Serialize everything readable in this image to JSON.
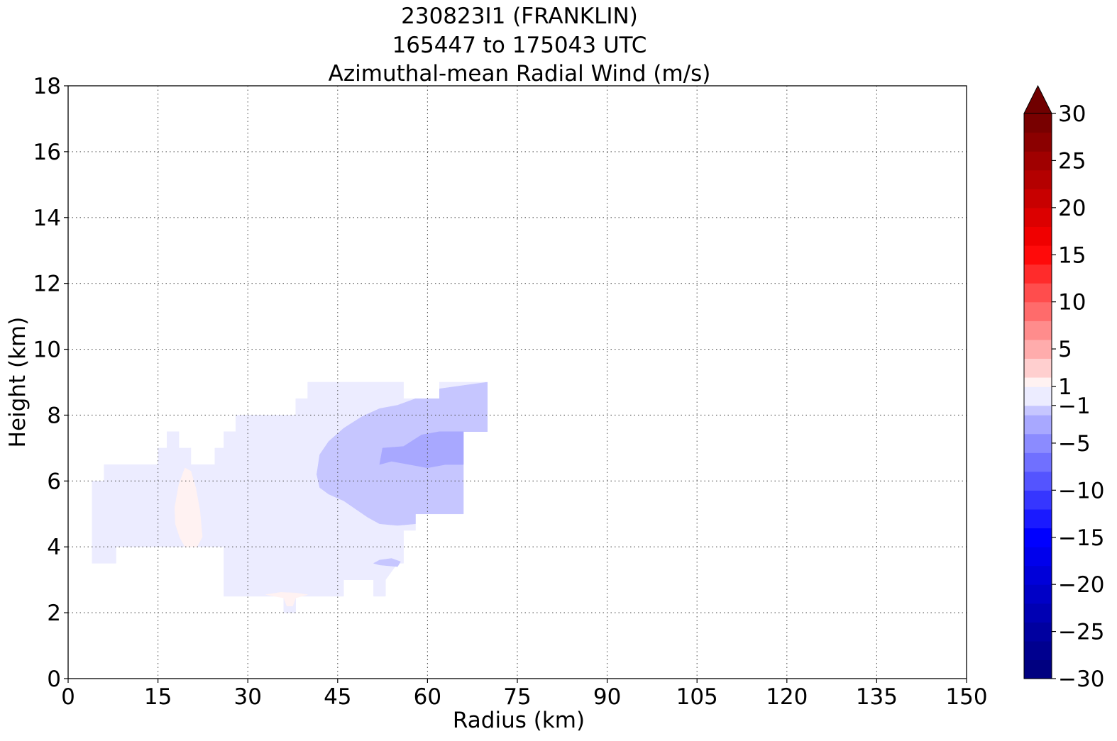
{
  "chart_data": {
    "type": "contourf",
    "title_lines": [
      "230823I1 (FRANKLIN)",
      "165447 to 175043 UTC",
      "Azimuthal-mean Radial Wind (m/s)"
    ],
    "xlabel": "Radius (km)",
    "ylabel": "Height (km)",
    "xlim": [
      0,
      150
    ],
    "ylim": [
      0,
      18
    ],
    "x_ticks": [
      0,
      15,
      30,
      45,
      60,
      75,
      90,
      105,
      120,
      135,
      150
    ],
    "y_ticks": [
      0,
      2,
      4,
      6,
      8,
      10,
      12,
      14,
      16,
      18
    ],
    "grid": true,
    "colorbar": {
      "vmin": -30,
      "vmax": 30,
      "extend": "max",
      "tick_values": [
        30,
        25,
        20,
        15,
        10,
        5,
        1,
        -1,
        -5,
        -10,
        -15,
        -20,
        -25,
        -30
      ],
      "tick_labels": [
        "30",
        "25",
        "20",
        "15",
        "10",
        "5",
        "1",
        "−1",
        "−5",
        "−10",
        "−15",
        "−20",
        "−25",
        "−30"
      ],
      "levels": [
        -30,
        -28,
        -26,
        -24,
        -22,
        -20,
        -18,
        -16,
        -14,
        -12,
        -10,
        -8,
        -6,
        -4,
        -2,
        -1,
        1,
        2,
        4,
        6,
        8,
        10,
        12,
        14,
        16,
        18,
        20,
        22,
        24,
        26,
        28,
        30
      ],
      "colors": [
        "#000080",
        "#00008f",
        "#0000a0",
        "#0000b3",
        "#0000c6",
        "#0000d9",
        "#0000ec",
        "#0000ff",
        "#1a1aff",
        "#3636ff",
        "#5454ff",
        "#7070ff",
        "#8b8bff",
        "#a8a8ff",
        "#c6c6ff",
        "#ececff",
        "#fff2f2",
        "#ffcfcf",
        "#ffacac",
        "#ff8c8c",
        "#ff6b6b",
        "#ff4d4d",
        "#ff2b2b",
        "#ff0a0a",
        "#f00000",
        "#dc0000",
        "#c80000",
        "#b40000",
        "#a00000",
        "#8b0000",
        "#780000"
      ],
      "extend_color": "#700000"
    },
    "contours": [
      {
        "value_range": [
          -2,
          -1
        ],
        "color": "#ececff",
        "points": [
          [
            4,
            3.5
          ],
          [
            4,
            6
          ],
          [
            6,
            6
          ],
          [
            6,
            6.5
          ],
          [
            15,
            6.5
          ],
          [
            15,
            7
          ],
          [
            16.5,
            7
          ],
          [
            16.5,
            7.5
          ],
          [
            18.5,
            7.5
          ],
          [
            18.5,
            7
          ],
          [
            20.5,
            7
          ],
          [
            20.5,
            6.5
          ],
          [
            24.5,
            6.5
          ],
          [
            24.5,
            7
          ],
          [
            26,
            7
          ],
          [
            26,
            7.5
          ],
          [
            28,
            7.5
          ],
          [
            28,
            8
          ],
          [
            38,
            8
          ],
          [
            38,
            8.5
          ],
          [
            40,
            8.5
          ],
          [
            40,
            9
          ],
          [
            56,
            9
          ],
          [
            56,
            8.5
          ],
          [
            62,
            8.5
          ],
          [
            62,
            9
          ],
          [
            70,
            9
          ],
          [
            70,
            7.5
          ],
          [
            66,
            7.5
          ],
          [
            66,
            5
          ],
          [
            58,
            5
          ],
          [
            58,
            4.5
          ],
          [
            56,
            4.5
          ],
          [
            56,
            3.5
          ],
          [
            55,
            3.5
          ],
          [
            53,
            3
          ],
          [
            53,
            2.5
          ],
          [
            51,
            2.5
          ],
          [
            51,
            3
          ],
          [
            46,
            3
          ],
          [
            46,
            2.5
          ],
          [
            38,
            2.5
          ],
          [
            38,
            2
          ],
          [
            36,
            2
          ],
          [
            36,
            2.5
          ],
          [
            26,
            2.5
          ],
          [
            26,
            4
          ],
          [
            8,
            4
          ],
          [
            8,
            3.5
          ]
        ]
      },
      {
        "value_range": [
          -4,
          -2
        ],
        "color": "#c6c6ff",
        "points": [
          [
            41.5,
            6.2
          ],
          [
            42,
            6.8
          ],
          [
            43.5,
            7.2
          ],
          [
            46,
            7.6
          ],
          [
            49,
            7.95
          ],
          [
            52,
            8.2
          ],
          [
            55,
            8.3
          ],
          [
            58,
            8.5
          ],
          [
            62,
            8.5
          ],
          [
            62,
            8.8
          ],
          [
            66,
            8.9
          ],
          [
            70,
            9
          ],
          [
            70,
            7.5
          ],
          [
            66,
            7.5
          ],
          [
            66,
            5
          ],
          [
            58,
            5
          ],
          [
            58,
            4.7
          ],
          [
            55,
            4.65
          ],
          [
            52,
            4.7
          ],
          [
            50,
            4.9
          ],
          [
            46,
            5.4
          ],
          [
            43.5,
            5.6
          ],
          [
            42,
            5.8
          ]
        ]
      },
      {
        "value_range": [
          -6,
          -4
        ],
        "color": "#a8a8ff",
        "points": [
          [
            52,
            6.5
          ],
          [
            52.5,
            7
          ],
          [
            56,
            7.05
          ],
          [
            59,
            7.4
          ],
          [
            62,
            7.5
          ],
          [
            66,
            7.5
          ],
          [
            66,
            6.5
          ],
          [
            63,
            6.5
          ],
          [
            60,
            6.4
          ],
          [
            57,
            6.5
          ],
          [
            54,
            6.6
          ]
        ]
      },
      {
        "value_range": [
          -4,
          -2
        ],
        "color": "#c6c6ff",
        "points": [
          [
            51,
            3.5
          ],
          [
            52,
            3.6
          ],
          [
            54,
            3.65
          ],
          [
            55.5,
            3.55
          ],
          [
            55,
            3.4
          ],
          [
            52,
            3.45
          ]
        ]
      },
      {
        "value_range": [
          1,
          2
        ],
        "color": "#fff2f2",
        "points": [
          [
            19.5,
            6.4
          ],
          [
            18.5,
            5.9
          ],
          [
            17.8,
            5.2
          ],
          [
            17.9,
            4.7
          ],
          [
            18.6,
            4.3
          ],
          [
            19.5,
            4
          ],
          [
            21.5,
            4
          ],
          [
            22.4,
            4.3
          ],
          [
            22,
            5.1
          ],
          [
            21.3,
            5.8
          ],
          [
            20.5,
            6.3
          ]
        ]
      },
      {
        "value_range": [
          1,
          2
        ],
        "color": "#fff2f2",
        "points": [
          [
            33,
            2.55
          ],
          [
            35.5,
            2.62
          ],
          [
            38,
            2.6
          ],
          [
            40,
            2.55
          ],
          [
            38,
            2.45
          ],
          [
            37.5,
            2.2
          ],
          [
            36.5,
            2.2
          ],
          [
            36,
            2.45
          ]
        ]
      }
    ]
  }
}
